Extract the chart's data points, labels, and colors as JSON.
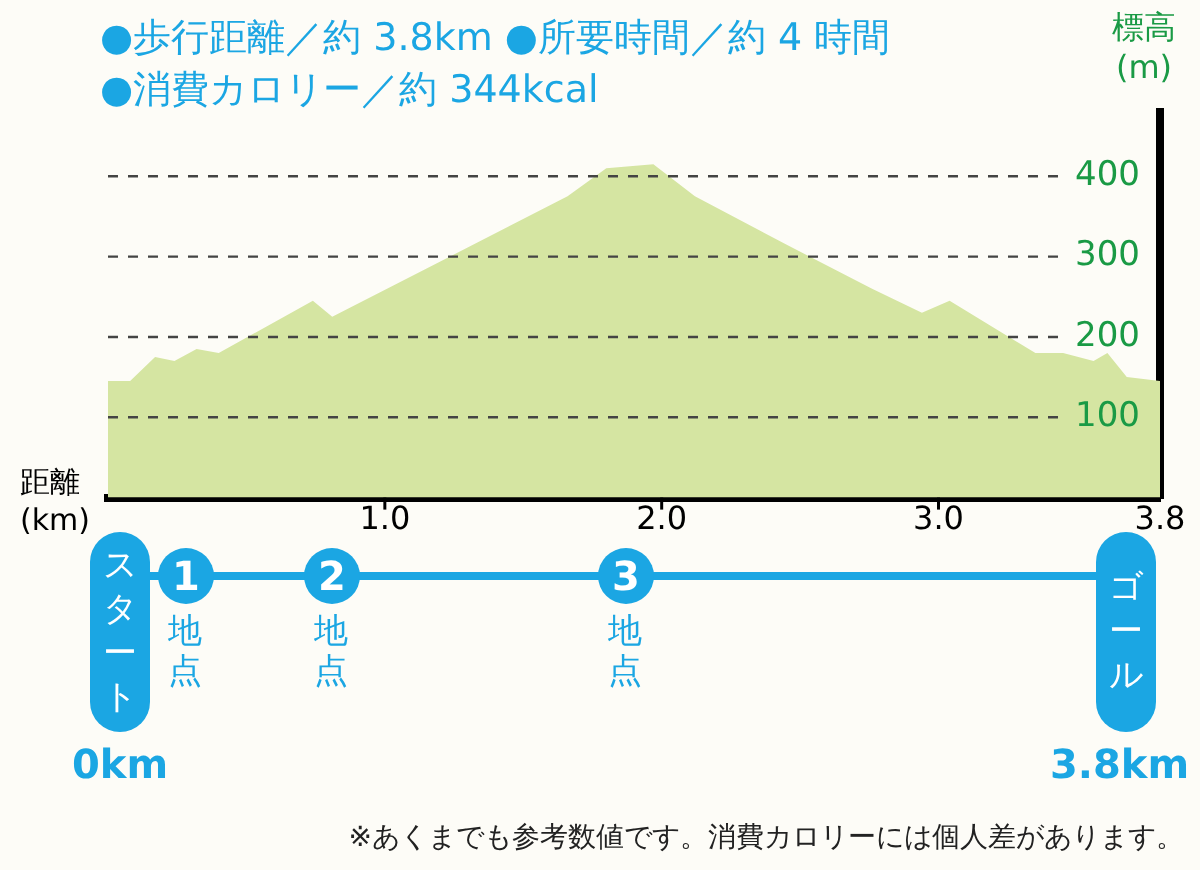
{
  "chart_data": {
    "type": "area",
    "title": "●歩行距離／約 3.8km ●所要時間／約 4 時間",
    "subtitle": "●消費カロリー／約 344kcal",
    "xlabel": "距離\n(km)",
    "ylabel": "標高\n(m)",
    "x": [
      0,
      0.08,
      0.17,
      0.24,
      0.32,
      0.4,
      0.74,
      0.81,
      1.66,
      1.8,
      1.97,
      2.12,
      2.45,
      2.76,
      2.94,
      3.04,
      3.35,
      3.45,
      3.56,
      3.61,
      3.68,
      3.8
    ],
    "values": [
      145,
      145,
      175,
      170,
      185,
      180,
      245,
      225,
      375,
      410,
      415,
      375,
      315,
      260,
      230,
      245,
      180,
      180,
      170,
      180,
      150,
      145
    ],
    "color": "#d5e5a2",
    "xlim": [
      0,
      3.8
    ],
    "xticks": [
      {
        "value": 1,
        "label": "1.0"
      },
      {
        "value": 2,
        "label": "2.0"
      },
      {
        "value": 3,
        "label": "3.0"
      },
      3.8
    ],
    "ylim": [
      0,
      480
    ],
    "yticks": [
      100,
      200,
      300,
      400
    ],
    "grid": "y",
    "legend": false,
    "marker": "none",
    "annotations": [
      "スタート",
      "ゴール",
      "0km",
      "3.8km",
      "1",
      "地点",
      "2",
      "地点",
      "3",
      "地点",
      "※あくまでも参考数値です。消費カロリーには個人差があります。"
    ]
  }
}
